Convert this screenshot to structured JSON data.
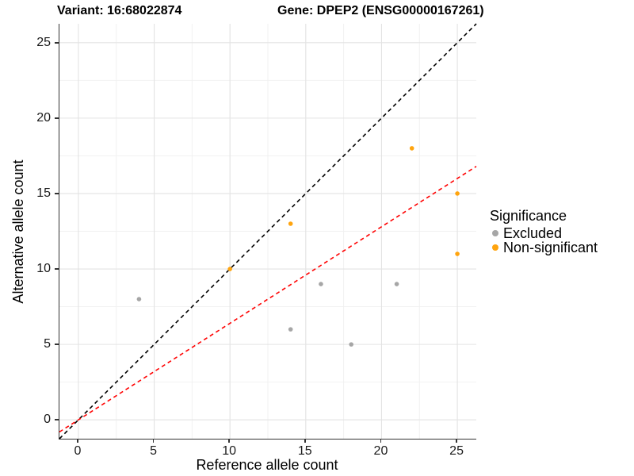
{
  "title": {
    "variant": "Variant: 16:68022874",
    "gene": "Gene: DPEP2 (ENSG00000167261)"
  },
  "axes": {
    "x": {
      "label": "Reference allele count",
      "ticks": [
        0,
        5,
        10,
        15,
        20,
        25
      ],
      "minor_ticks": [
        2.5,
        7.5,
        12.5,
        17.5,
        22.5
      ],
      "range": [
        -1.25,
        26.25
      ]
    },
    "y": {
      "label": "Alternative allele count",
      "ticks": [
        0,
        5,
        10,
        15,
        20,
        25
      ],
      "minor_ticks": [
        2.5,
        7.5,
        12.5,
        17.5,
        22.5
      ],
      "range": [
        -1.25,
        26.25
      ]
    }
  },
  "legend": {
    "title": "Significance",
    "items": [
      {
        "label": "Excluded",
        "color": "#a6a6a6"
      },
      {
        "label": "Non-significant",
        "color": "#ffa40e"
      }
    ]
  },
  "colors": {
    "excluded_point": "#a6a6a6",
    "non_significant_point": "#ffa40e",
    "identity_line": "#000000",
    "fit_line": "#ff0000",
    "grid_major": "#e3e3e3",
    "grid_minor": "#f0f0f0",
    "axis_line": "#333333"
  },
  "chart_data": {
    "type": "scatter",
    "title": "Variant: 16:68022874 — Gene: DPEP2 (ENSG00000167261)",
    "xlabel": "Reference allele count",
    "ylabel": "Alternative allele count",
    "xlim": [
      -1.25,
      26.25
    ],
    "ylim": [
      -1.25,
      26.25
    ],
    "grid": true,
    "legend_position": "right",
    "legend_title": "Significance",
    "series": [
      {
        "name": "Excluded",
        "color": "#a6a6a6",
        "points": [
          [
            4,
            8
          ],
          [
            14,
            6
          ],
          [
            16,
            9
          ],
          [
            18,
            5
          ],
          [
            21,
            9
          ]
        ]
      },
      {
        "name": "Non-significant",
        "color": "#ffa40e",
        "points": [
          [
            10,
            10
          ],
          [
            14,
            13
          ],
          [
            22,
            18
          ],
          [
            25,
            15
          ],
          [
            25,
            11
          ]
        ]
      }
    ],
    "lines": [
      {
        "name": "identity-line",
        "slope": 1,
        "intercept": 0,
        "color": "#000000",
        "style": "dashed"
      },
      {
        "name": "fit-line",
        "slope": 0.64,
        "intercept": 0,
        "color": "#ff0000",
        "style": "dashed"
      }
    ]
  }
}
